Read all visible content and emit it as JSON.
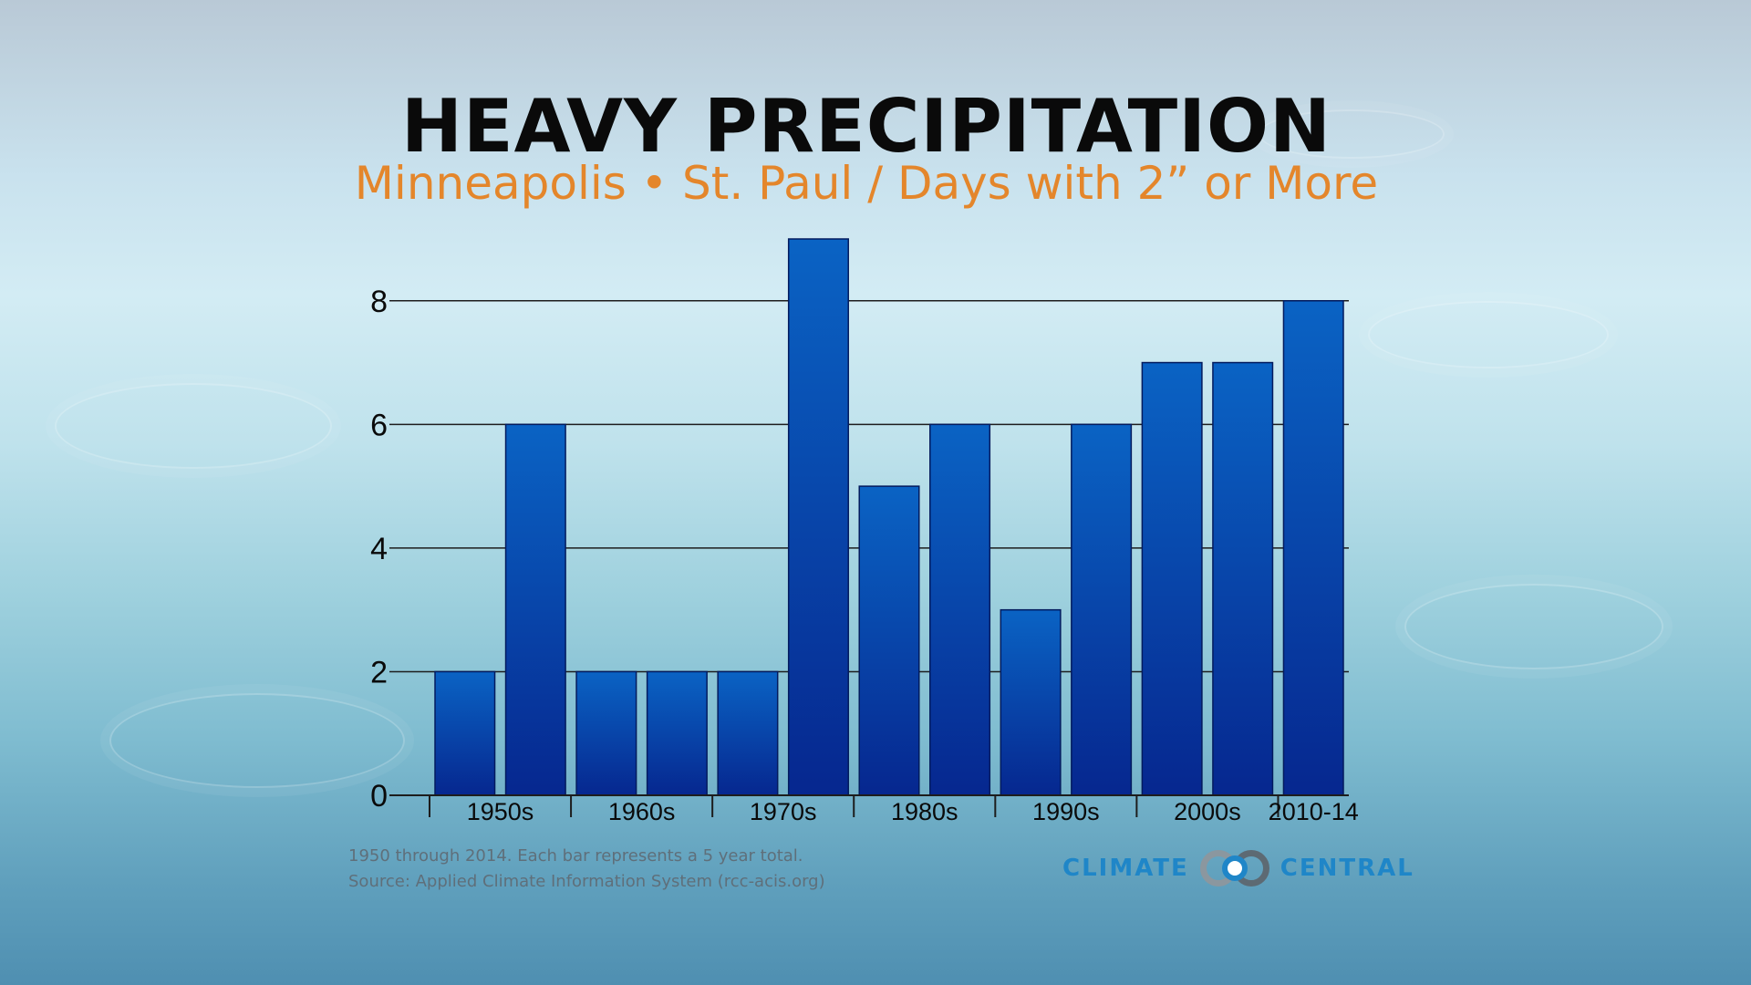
{
  "header": {
    "title": "HEAVY PRECIPITATION",
    "subtitle": "Minneapolis • St. Paul / Days with 2” or More"
  },
  "footnote": {
    "line1": "1950 through 2014. Each bar represents a 5 year total.",
    "line2": "Source: Applied Climate Information System (rcc-acis.org)"
  },
  "logo": {
    "left_text": "CLIMATE",
    "right_text": "CENTRAL"
  },
  "colors": {
    "title": "#0a0a0a",
    "subtitle": "#e4862b",
    "bar_top": "#0a63c4",
    "bar_bottom": "#06278f",
    "logo": "#1f86c8"
  },
  "chart_data": {
    "type": "bar",
    "title": "HEAVY PRECIPITATION",
    "subtitle": "Minneapolis • St. Paul / Days with 2” or More",
    "x_tick_labels": [
      "1950s",
      "1960s",
      "1970s",
      "1980s",
      "1990s",
      "2000s",
      "2010-14"
    ],
    "values": [
      2,
      6,
      2,
      2,
      2,
      9,
      5,
      6,
      3,
      6,
      7,
      7,
      8
    ],
    "ylim": [
      0,
      9
    ],
    "y_ticks": [
      0,
      2,
      4,
      6,
      8
    ],
    "grid": true,
    "xlabel": "",
    "ylabel": ""
  }
}
